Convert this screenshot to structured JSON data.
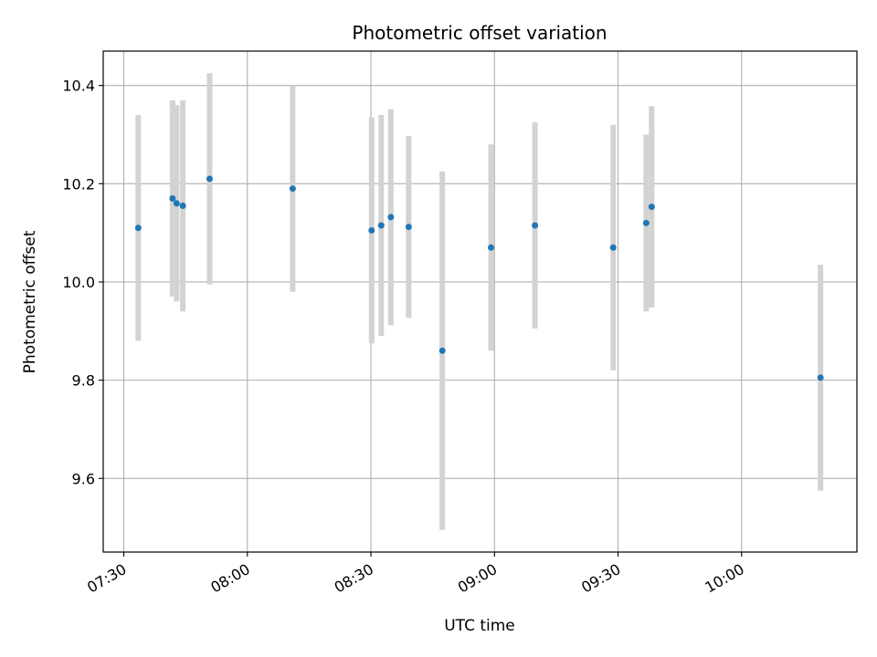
{
  "chart_data": {
    "type": "scatter",
    "title": "Photometric offset variation",
    "xlabel": "UTC time",
    "ylabel": "Photometric offset",
    "x_axis_kind": "time",
    "xlim": [
      "07:25",
      "10:28"
    ],
    "ylim": [
      9.45,
      10.47
    ],
    "x_ticks": [
      "07:30",
      "08:00",
      "08:30",
      "09:00",
      "09:30",
      "10:00"
    ],
    "y_ticks": [
      "9.6",
      "9.8",
      "10.0",
      "10.2",
      "10.4"
    ],
    "grid": true,
    "colors": {
      "point": "#1f77b4",
      "errorbar": "#d3d3d3",
      "grid": "#b0b0b0",
      "axis": "#000000"
    },
    "series": [
      {
        "points": [
          {
            "x": "07:33:30",
            "y": 10.11,
            "err": 0.23
          },
          {
            "x": "07:41:50",
            "y": 10.17,
            "err": 0.2
          },
          {
            "x": "07:42:50",
            "y": 10.16,
            "err": 0.2
          },
          {
            "x": "07:44:20",
            "y": 10.155,
            "err": 0.215
          },
          {
            "x": "07:50:50",
            "y": 10.21,
            "err": 0.215
          },
          {
            "x": "08:11:00",
            "y": 10.19,
            "err": 0.21
          },
          {
            "x": "08:30:10",
            "y": 10.105,
            "err": 0.23
          },
          {
            "x": "08:32:30",
            "y": 10.115,
            "err": 0.225
          },
          {
            "x": "08:34:50",
            "y": 10.132,
            "err": 0.22
          },
          {
            "x": "08:39:10",
            "y": 10.112,
            "err": 0.185
          },
          {
            "x": "08:47:20",
            "y": 9.86,
            "err": 0.365
          },
          {
            "x": "08:59:10",
            "y": 10.07,
            "err": 0.21
          },
          {
            "x": "09:09:50",
            "y": 10.115,
            "err": 0.21
          },
          {
            "x": "09:28:50",
            "y": 10.07,
            "err": 0.25
          },
          {
            "x": "09:36:50",
            "y": 10.12,
            "err": 0.18
          },
          {
            "x": "09:38:10",
            "y": 10.153,
            "err": 0.205
          },
          {
            "x": "10:19:10",
            "y": 9.805,
            "err": 0.23
          }
        ]
      }
    ]
  }
}
